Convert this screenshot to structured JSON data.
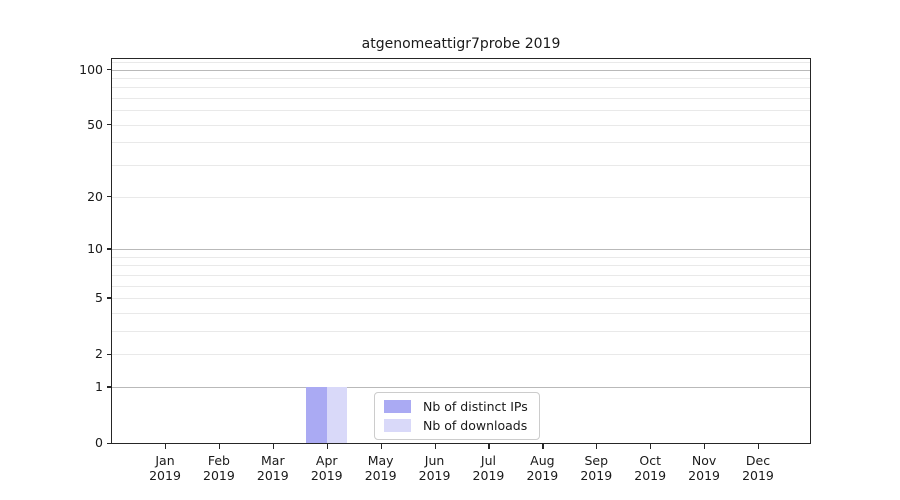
{
  "chart_data": {
    "type": "bar",
    "title": "atgenomeattigr7probe 2019",
    "categories": [
      "Jan",
      "Feb",
      "Mar",
      "Apr",
      "May",
      "Jun",
      "Jul",
      "Aug",
      "Sep",
      "Oct",
      "Nov",
      "Dec"
    ],
    "year_label": "2019",
    "series": [
      {
        "name": "Nb of distinct IPs",
        "color": "#aaaaf3",
        "values": [
          0,
          0,
          0,
          1,
          0,
          0,
          0,
          0,
          0,
          0,
          0,
          0
        ]
      },
      {
        "name": "Nb of downloads",
        "color": "#d9d9f9",
        "values": [
          0,
          0,
          0,
          1,
          0,
          0,
          0,
          0,
          0,
          0,
          0,
          0
        ]
      }
    ],
    "xlabel": "",
    "ylabel": "",
    "yscale": "log1p",
    "ylim": [
      0,
      114
    ],
    "ytick_values": [
      0,
      1,
      2,
      5,
      10,
      20,
      50,
      100
    ],
    "major_grid_values": [
      1,
      10,
      100
    ],
    "minor_grid_values": [
      2,
      3,
      4,
      5,
      6,
      7,
      8,
      9,
      20,
      30,
      40,
      50,
      60,
      70,
      80,
      90,
      110
    ],
    "grid": true,
    "legend_position": "lower center"
  },
  "colors": {
    "grid_major": "#b9b9b9",
    "grid_minor": "#e9e9e9",
    "spine": "#262626",
    "text": "#1a1a1a",
    "background": "#ffffff"
  }
}
